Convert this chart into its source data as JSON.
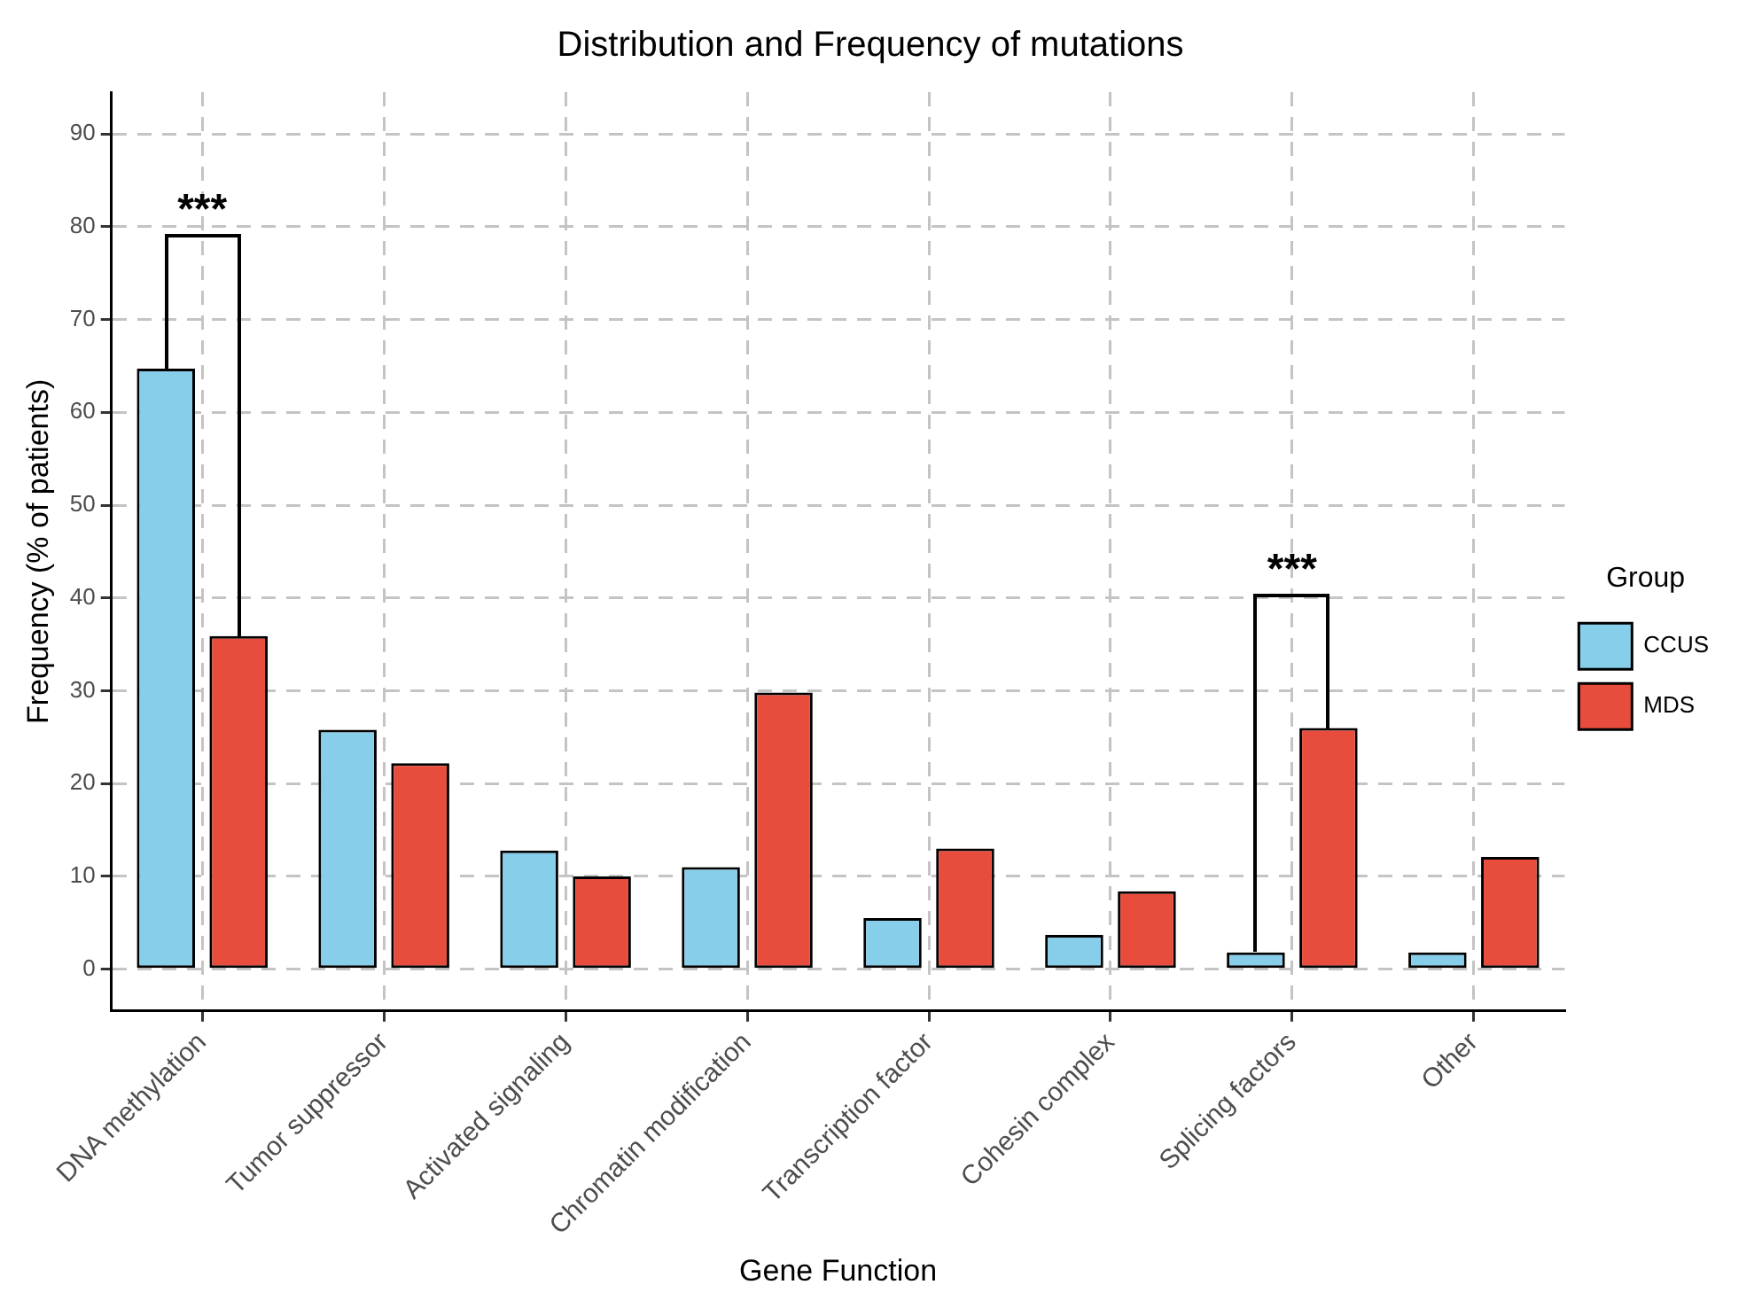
{
  "chart_data": {
    "type": "bar",
    "title": "Distribution and Frequency of mutations",
    "xlabel": "Gene Function",
    "ylabel": "Frequency (% of patients)",
    "legend_title": "Group",
    "categories": [
      "DNA methylation",
      "Tumor suppressor",
      "Activated signaling",
      "Chromatin modification",
      "Transcription factor",
      "Cohesin complex",
      "Splicing factors",
      "Other"
    ],
    "series": [
      {
        "name": "CCUS",
        "color": "#87ceeb",
        "values": [
          64.7,
          25.8,
          12.8,
          11.0,
          5.5,
          3.7,
          1.8,
          1.8
        ]
      },
      {
        "name": "MDS",
        "color": "#e74c3c",
        "values": [
          35.9,
          22.2,
          10.0,
          29.8,
          13.0,
          8.4,
          26.0,
          12.1
        ]
      }
    ],
    "ylim": [
      -4.5,
      94.5
    ],
    "yticks": [
      0,
      10,
      20,
      30,
      40,
      50,
      60,
      70,
      80,
      90
    ],
    "grid": true,
    "legend": "right",
    "annotations": [
      "***",
      "***"
    ]
  }
}
